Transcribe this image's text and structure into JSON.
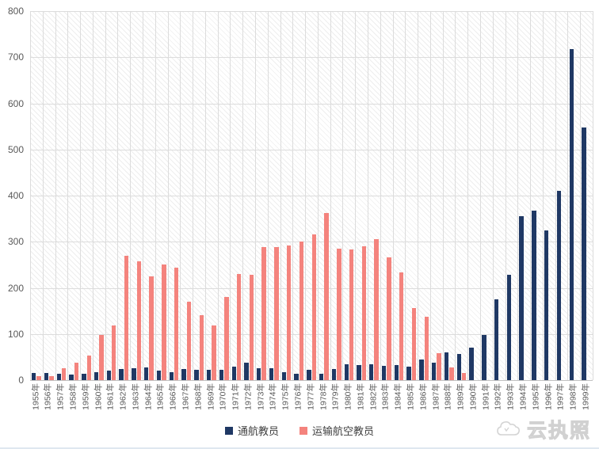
{
  "chart_data": {
    "type": "bar",
    "title": "",
    "xlabel": "",
    "ylabel": "",
    "categories": [
      "1955年",
      "1956年",
      "1957年",
      "1958年",
      "1959年",
      "1960年",
      "1961年",
      "1962年",
      "1963年",
      "1964年",
      "1965年",
      "1966年",
      "1967年",
      "1968年",
      "1969年",
      "1970年",
      "1971年",
      "1972年",
      "1973年",
      "1974年",
      "1975年",
      "1976年",
      "1977年",
      "1978年",
      "1979年",
      "1980年",
      "1981年",
      "1982年",
      "1983年",
      "1984年",
      "1985年",
      "1986年",
      "1987年",
      "1988年",
      "1989年",
      "1990年",
      "1991年",
      "1992年",
      "1993年",
      "1994年",
      "1995年",
      "1996年",
      "1997年",
      "1998年",
      "1999年"
    ],
    "series": [
      {
        "name": "通航教员",
        "color": "#1F3864",
        "values": [
          15,
          15,
          14,
          12,
          14,
          18,
          20,
          24,
          25,
          28,
          20,
          17,
          24,
          22,
          22,
          22,
          30,
          38,
          25,
          25,
          18,
          14,
          22,
          14,
          24,
          35,
          33,
          35,
          31,
          32,
          29,
          45,
          38,
          60,
          57,
          70,
          98,
          175,
          228,
          356,
          368,
          324,
          410,
          717,
          548
        ]
      },
      {
        "name": "运输航空教员",
        "color": "#F4837D",
        "values": [
          8,
          9,
          26,
          37,
          54,
          98,
          118,
          269,
          257,
          225,
          251,
          243,
          170,
          140,
          119,
          180,
          230,
          228,
          288,
          289,
          292,
          301,
          316,
          363,
          285,
          283,
          291,
          305,
          266,
          233,
          157,
          137,
          58,
          28,
          15,
          0,
          0,
          0,
          0,
          0,
          0,
          0,
          0,
          0,
          0
        ]
      }
    ],
    "ylim": [
      0,
      800
    ],
    "y_ticks": [
      800,
      700,
      600,
      500,
      400,
      300,
      200,
      100,
      0
    ],
    "grid": "horizontal + vertical light gray gridlines, hatched diagonal plot background",
    "legend_position": "bottom-center"
  },
  "legend": {
    "items": [
      {
        "label": "通航教员",
        "color": "#1F3864"
      },
      {
        "label": "运输航空教员",
        "color": "#F4837D"
      }
    ]
  },
  "watermark": {
    "text": "云执照"
  }
}
